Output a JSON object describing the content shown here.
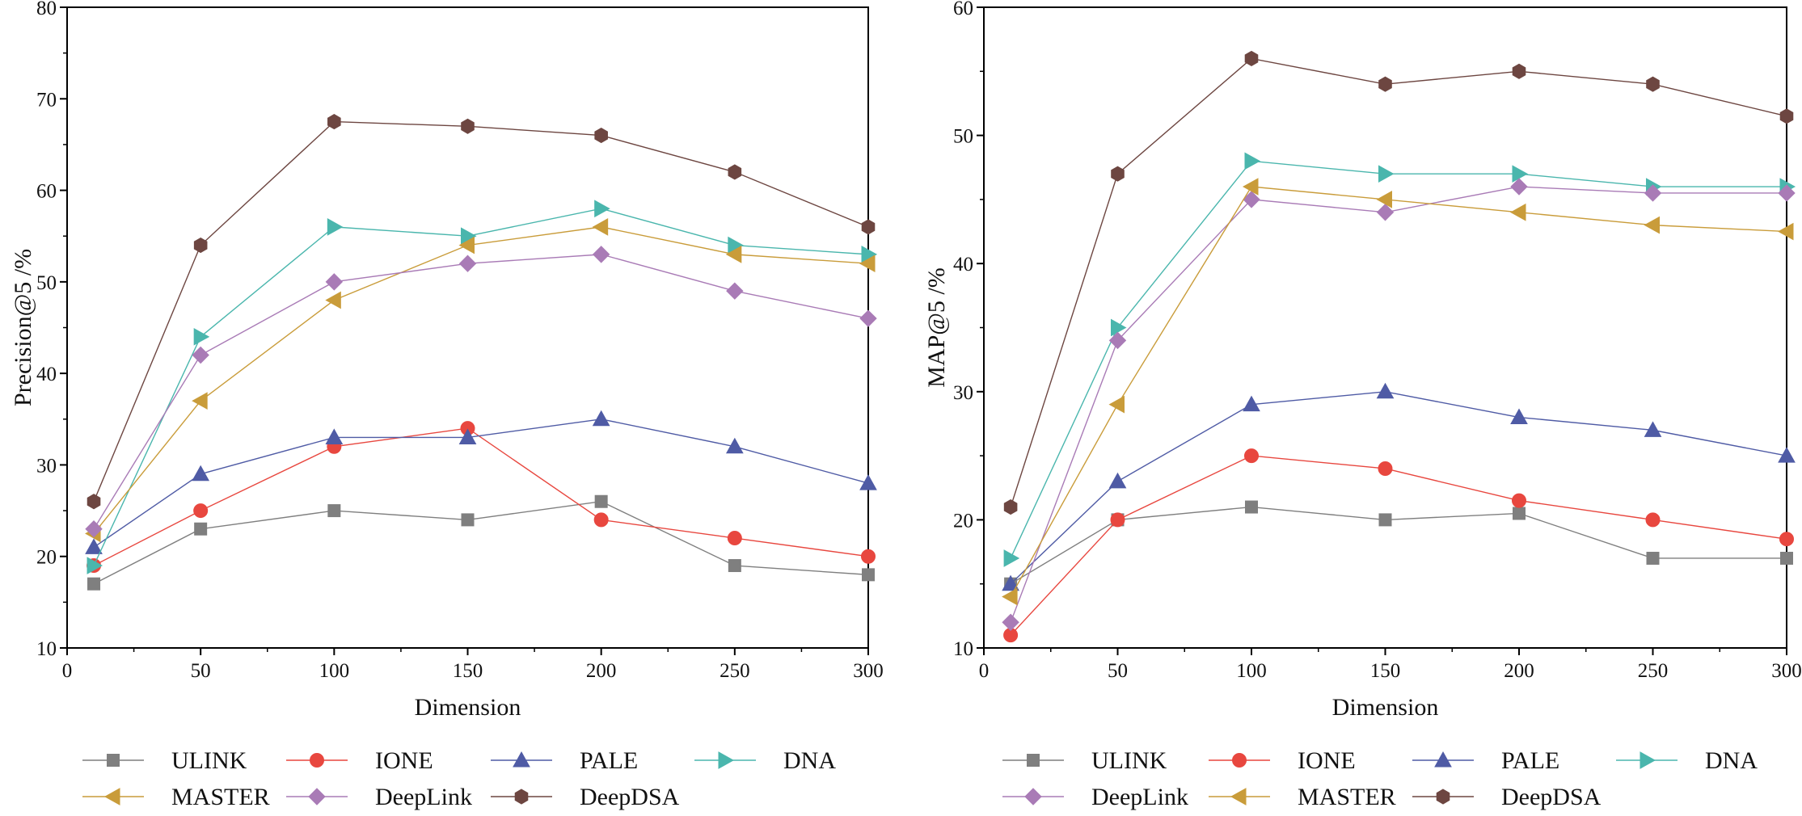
{
  "chart_data": [
    {
      "type": "line",
      "xlabel": "Dimension",
      "ylabel": "Precision@5 /%",
      "xlim": [
        0,
        300
      ],
      "ylim": [
        10,
        80
      ],
      "xticks": [
        0,
        50,
        100,
        150,
        200,
        250,
        300
      ],
      "yticks": [
        10,
        20,
        30,
        40,
        50,
        60,
        70,
        80
      ],
      "grid": false,
      "legend_position": "bottom",
      "x": [
        10,
        50,
        100,
        150,
        200,
        250,
        300
      ],
      "series": [
        {
          "name": "ULINK",
          "marker": "square",
          "color": "#7f7f7f",
          "values": [
            17,
            23,
            25,
            24,
            26,
            19,
            18
          ]
        },
        {
          "name": "IONE",
          "marker": "circle",
          "color": "#e8473f",
          "values": [
            19,
            25,
            32,
            34,
            24,
            22,
            20
          ]
        },
        {
          "name": "PALE",
          "marker": "triangle-up",
          "color": "#4f5ba5",
          "values": [
            21,
            29,
            33,
            33,
            35,
            32,
            28
          ]
        },
        {
          "name": "DNA",
          "marker": "triangle-right",
          "color": "#4ab6ad",
          "values": [
            19,
            44,
            56,
            55,
            58,
            54,
            53
          ]
        },
        {
          "name": "MASTER",
          "marker": "triangle-left",
          "color": "#c99c3a",
          "values": [
            22.5,
            37,
            48,
            54,
            56,
            53,
            52
          ]
        },
        {
          "name": "DeepLink",
          "marker": "diamond",
          "color": "#a97bb6",
          "values": [
            23,
            42,
            50,
            52,
            53,
            49,
            46
          ]
        },
        {
          "name": "DeepDSA",
          "marker": "hexagon",
          "color": "#6d4641",
          "values": [
            26,
            54,
            67.5,
            67,
            66,
            62,
            56
          ]
        }
      ]
    },
    {
      "type": "line",
      "xlabel": "Dimension",
      "ylabel": "MAP@5 /%",
      "xlim": [
        0,
        300
      ],
      "ylim": [
        10,
        60
      ],
      "xticks": [
        0,
        50,
        100,
        150,
        200,
        250,
        300
      ],
      "yticks": [
        10,
        20,
        30,
        40,
        50,
        60
      ],
      "grid": false,
      "legend_position": "bottom",
      "x": [
        10,
        50,
        100,
        150,
        200,
        250,
        300
      ],
      "series": [
        {
          "name": "ULINK",
          "marker": "square",
          "color": "#7f7f7f",
          "values": [
            15,
            20,
            21,
            20,
            20.5,
            17,
            17
          ]
        },
        {
          "name": "IONE",
          "marker": "circle",
          "color": "#e8473f",
          "values": [
            11,
            20,
            25,
            24,
            21.5,
            20,
            18.5
          ]
        },
        {
          "name": "PALE",
          "marker": "triangle-up",
          "color": "#4f5ba5",
          "values": [
            15,
            23,
            29,
            30,
            28,
            27,
            25
          ]
        },
        {
          "name": "DNA",
          "marker": "triangle-right",
          "color": "#4ab6ad",
          "values": [
            17,
            35,
            48,
            47,
            47,
            46,
            46
          ]
        },
        {
          "name": "DeepLink",
          "marker": "diamond",
          "color": "#a97bb6",
          "values": [
            12,
            34,
            45,
            44,
            46,
            45.5,
            45.5
          ]
        },
        {
          "name": "MASTER",
          "marker": "triangle-left",
          "color": "#c99c3a",
          "values": [
            14,
            29,
            46,
            45,
            44,
            43,
            42.5
          ]
        },
        {
          "name": "DeepDSA",
          "marker": "hexagon",
          "color": "#6d4641",
          "values": [
            21,
            47,
            56,
            54,
            55,
            54,
            51.5
          ]
        }
      ]
    }
  ]
}
